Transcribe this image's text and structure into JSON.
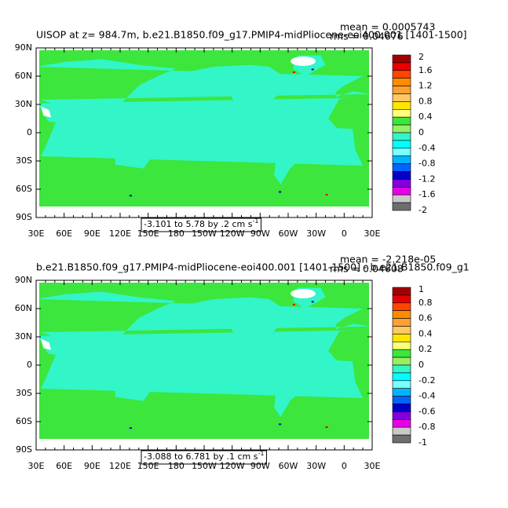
{
  "chart_data": [
    {
      "type": "contour-map",
      "title": "UISOP at z= 984.7m, b.e21.B1850.f09_g17.PMIP4-midPliocene-eoi400.001 [1401-1500]",
      "mean": "mean = 0.0005743",
      "rms": "rms = 0.04676",
      "lat_labels": [
        "90N",
        "60N",
        "30N",
        "0",
        "30S",
        "60S",
        "90S"
      ],
      "lon_labels": [
        "30E",
        "60E",
        "90E",
        "120E",
        "150E",
        "180",
        "150W",
        "120W",
        "90W",
        "60W",
        "30W",
        "0",
        "30E"
      ],
      "levels": [
        2,
        1.6,
        1.2,
        0.8,
        0.4,
        0,
        -0.4,
        -0.8,
        -1.2,
        -1.6,
        -2
      ],
      "colors": [
        "#a50000",
        "#e60000",
        "#ff4600",
        "#ff8c00",
        "#ffa032",
        "#ffc864",
        "#ffe600",
        "#ffff78",
        "#3ce63c",
        "#96f064",
        "#32f5c8",
        "#00ffff",
        "#78ffff",
        "#00b4ff",
        "#0064ff",
        "#0000c8",
        "#8200dc",
        "#e600e6",
        "#c8c8c8",
        "#6e6e6e"
      ],
      "range": "-3.101 to 5.78 by .2 cm s",
      "range_exp": "-1"
    },
    {
      "type": "contour-map",
      "title": "b.e21.B1850.f09_g17.PMIP4-midPliocene-eoi400.001 [1401-1500] - b.e21.B1850.f09_g1",
      "mean": "mean = -2.218e-05",
      "rms": "rms = 0.04608",
      "lat_labels": [
        "90N",
        "60N",
        "30N",
        "0",
        "30S",
        "60S",
        "90S"
      ],
      "lon_labels": [
        "30E",
        "60E",
        "90E",
        "120E",
        "150E",
        "180",
        "150W",
        "120W",
        "90W",
        "60W",
        "30W",
        "0",
        "30E"
      ],
      "levels": [
        1,
        0.8,
        0.6,
        0.4,
        0.2,
        0,
        -0.2,
        -0.4,
        -0.6,
        -0.8,
        -1
      ],
      "colors": [
        "#a50000",
        "#e60000",
        "#ff4600",
        "#ff8c00",
        "#ffa032",
        "#ffc864",
        "#ffe600",
        "#ffff78",
        "#3ce63c",
        "#96f064",
        "#32f5c8",
        "#00ffff",
        "#78ffff",
        "#00b4ff",
        "#0064ff",
        "#0000c8",
        "#8200dc",
        "#e600e6",
        "#c8c8c8",
        "#6e6e6e"
      ],
      "range": "-3.088 to 6.781 by .1 cm s",
      "range_exp": "-1"
    }
  ]
}
